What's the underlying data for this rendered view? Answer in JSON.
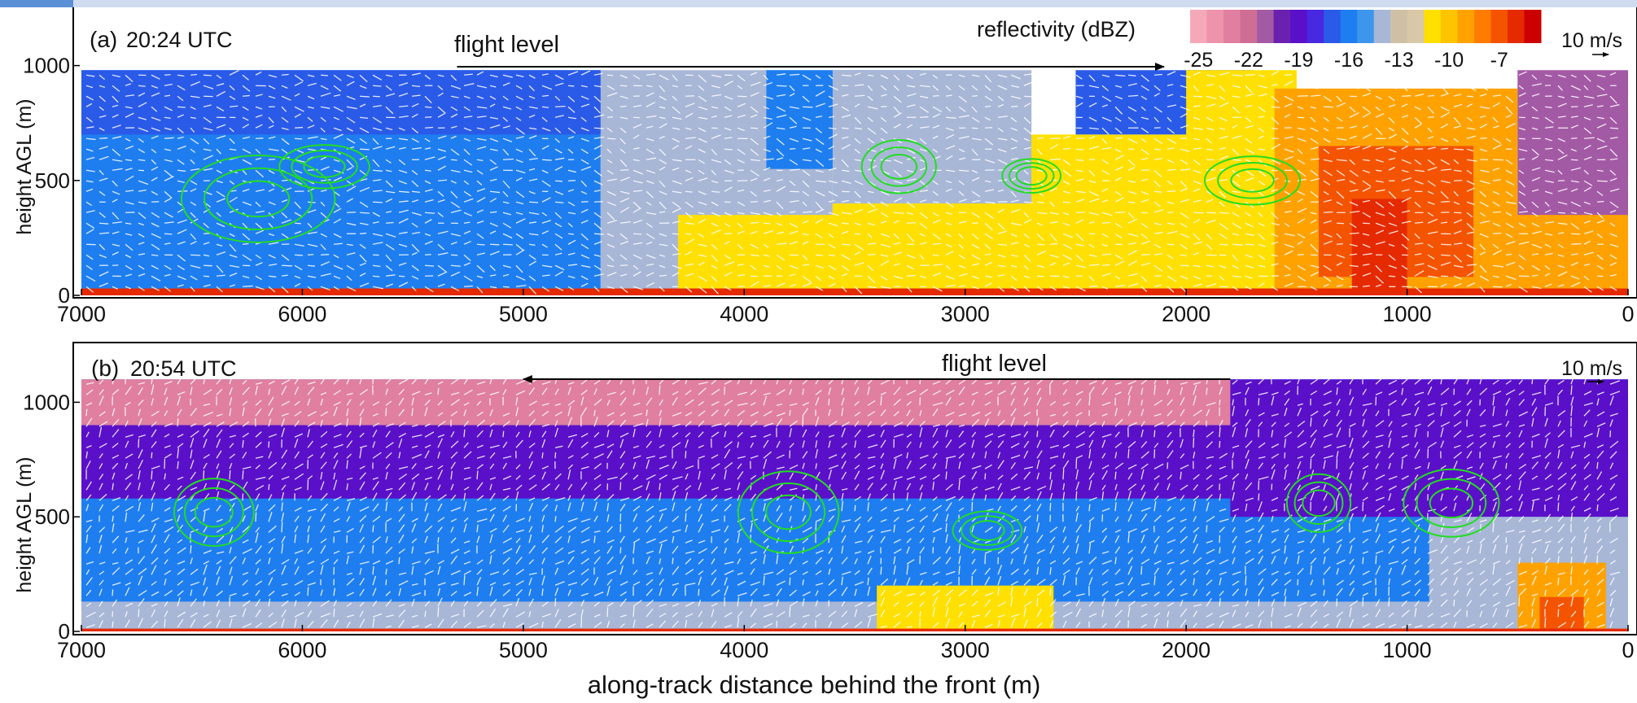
{
  "chart_data": [
    {
      "type": "heatmap",
      "panel_label": "(a)",
      "time": "20:24 UTC",
      "flight_level_label": "flight level",
      "flight_direction": "right",
      "flight_span_x": [
        5300,
        2100
      ],
      "xlim": [
        7000,
        0
      ],
      "ylim": [
        0,
        1250
      ],
      "data_top": 980,
      "x_ticks": [
        "7000",
        "6000",
        "5000",
        "4000",
        "3000",
        "2000",
        "1000",
        "0"
      ],
      "x_tick_values": [
        7000,
        6000,
        5000,
        4000,
        3000,
        2000,
        1000,
        0
      ],
      "y_ticks": [
        "0",
        "500",
        "1000"
      ],
      "y_tick_values": [
        0,
        500,
        1000
      ],
      "ylabel": "height AGL (m)",
      "colorbar_title": "reflectivity (dBZ)",
      "colorbar_ticks": [
        "-25",
        "-22",
        "-19",
        "-16",
        "-13",
        "-10",
        "-7"
      ],
      "scale_vector_label": "10 m/s",
      "regions": [
        {
          "x0": 7000,
          "x1": 4650,
          "y0": 30,
          "y1": 980,
          "dbz": -15.5
        },
        {
          "x0": 7000,
          "x1": 4650,
          "y0": 700,
          "y1": 980,
          "dbz": -17
        },
        {
          "x0": 4650,
          "x1": 3600,
          "y0": 30,
          "y1": 980,
          "dbz": -13.5
        },
        {
          "x0": 3900,
          "x1": 3200,
          "y0": 550,
          "y1": 980,
          "dbz": -16
        },
        {
          "x0": 4300,
          "x1": 3500,
          "y0": 30,
          "y1": 350,
          "dbz": -11
        },
        {
          "x0": 3600,
          "x1": 2000,
          "y0": 30,
          "y1": 400,
          "dbz": -10.5
        },
        {
          "x0": 3000,
          "x1": 2000,
          "y0": 350,
          "y1": 700,
          "dbz": -11
        },
        {
          "x0": 3600,
          "x1": 2700,
          "y0": 400,
          "y1": 980,
          "dbz": -13.5
        },
        {
          "x0": 2500,
          "x1": 1700,
          "y0": 700,
          "y1": 980,
          "dbz": -16.5
        },
        {
          "x0": 2000,
          "x1": 1500,
          "y0": 30,
          "y1": 980,
          "dbz": -10.5
        },
        {
          "x0": 1600,
          "x1": 500,
          "y0": 30,
          "y1": 900,
          "dbz": -9
        },
        {
          "x0": 1400,
          "x1": 700,
          "y0": 80,
          "y1": 650,
          "dbz": -7
        },
        {
          "x0": 1250,
          "x1": 1000,
          "y0": 30,
          "y1": 420,
          "dbz": -5.5
        },
        {
          "x0": 500,
          "x1": 0,
          "y0": 30,
          "y1": 980,
          "dbz": -21
        },
        {
          "x0": 500,
          "x1": 0,
          "y0": 30,
          "y1": 350,
          "dbz": -9
        },
        {
          "x0": 7000,
          "x1": 0,
          "y0": 0,
          "y1": 30,
          "dbz": -5.5
        }
      ]
    },
    {
      "type": "heatmap",
      "panel_label": "(b)",
      "time": "20:54 UTC",
      "flight_level_label": "flight level",
      "flight_direction": "left",
      "flight_span_x": [
        1800,
        5000
      ],
      "xlim": [
        7000,
        0
      ],
      "ylim": [
        0,
        1250
      ],
      "data_top": 1100,
      "x_ticks": [
        "7000",
        "6000",
        "5000",
        "4000",
        "3000",
        "2000",
        "1000",
        "0"
      ],
      "x_tick_values": [
        7000,
        6000,
        5000,
        4000,
        3000,
        2000,
        1000,
        0
      ],
      "y_ticks": [
        "0",
        "500",
        "1000"
      ],
      "y_tick_values": [
        0,
        500,
        1000
      ],
      "ylabel": "height AGL (m)",
      "xlabel": "along-track distance behind the front (m)",
      "scale_vector_label": "10 m/s",
      "regions": [
        {
          "x0": 7000,
          "x1": 0,
          "y0": 0,
          "y1": 1100,
          "dbz": -16
        },
        {
          "x0": 7000,
          "x1": 1800,
          "y0": 900,
          "y1": 1100,
          "dbz": -23
        },
        {
          "x0": 7000,
          "x1": 1800,
          "y0": 580,
          "y1": 900,
          "dbz": -18.5
        },
        {
          "x0": 1800,
          "x1": 0,
          "y0": 500,
          "y1": 1100,
          "dbz": -18.5
        },
        {
          "x0": 7000,
          "x1": 0,
          "y0": 0,
          "y1": 130,
          "dbz": -13.5
        },
        {
          "x0": 3400,
          "x1": 2600,
          "y0": 0,
          "y1": 200,
          "dbz": -11
        },
        {
          "x0": 900,
          "x1": 0,
          "y0": 0,
          "y1": 500,
          "dbz": -13.5
        },
        {
          "x0": 500,
          "x1": 100,
          "y0": 0,
          "y1": 300,
          "dbz": -9
        },
        {
          "x0": 400,
          "x1": 200,
          "y0": 0,
          "y1": 150,
          "dbz": -7
        },
        {
          "x0": 7000,
          "x1": 0,
          "y0": 0,
          "y1": 12,
          "dbz": -5.5
        }
      ]
    }
  ],
  "colorscale": [
    {
      "dbz": -25,
      "color": "#f5a9b8"
    },
    {
      "dbz": -24,
      "color": "#ee93ac"
    },
    {
      "dbz": -23,
      "color": "#e07fa0"
    },
    {
      "dbz": -22,
      "color": "#cf6e95"
    },
    {
      "dbz": -21,
      "color": "#a35aa5"
    },
    {
      "dbz": -20,
      "color": "#6b21b0"
    },
    {
      "dbz": -19,
      "color": "#5a10c8"
    },
    {
      "dbz": -18,
      "color": "#4828e0"
    },
    {
      "dbz": -17,
      "color": "#2a5ae8"
    },
    {
      "dbz": -16,
      "color": "#1e7ef0"
    },
    {
      "dbz": -15,
      "color": "#3d96ec"
    },
    {
      "dbz": -14,
      "color": "#a8b7d6"
    },
    {
      "dbz": -13,
      "color": "#cfc0a5"
    },
    {
      "dbz": -12,
      "color": "#d8c8a8"
    },
    {
      "dbz": -11,
      "color": "#ffe000"
    },
    {
      "dbz": -10,
      "color": "#ffc400"
    },
    {
      "dbz": -9,
      "color": "#ffa200"
    },
    {
      "dbz": -8,
      "color": "#ff7c00"
    },
    {
      "dbz": -7,
      "color": "#f45400"
    },
    {
      "dbz": -6,
      "color": "#e52a00"
    },
    {
      "dbz": -5,
      "color": "#cc0000"
    }
  ]
}
